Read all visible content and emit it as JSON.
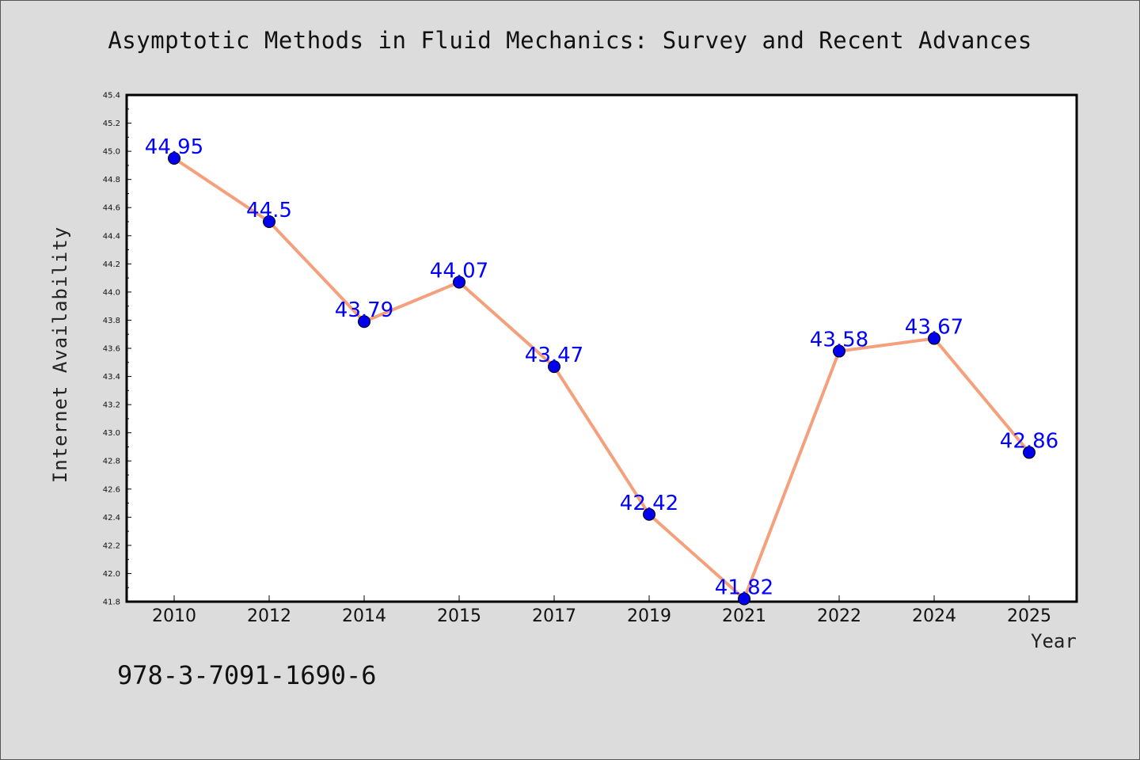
{
  "page": {
    "footer_code": "978-3-7091-1690-6"
  },
  "chart_data": {
    "type": "line",
    "title": "Asymptotic Methods in Fluid Mechanics: Survey and Recent Advances",
    "xlabel": "Year",
    "ylabel": "Internet Availability",
    "categories": [
      "2010",
      "2012",
      "2014",
      "2015",
      "2017",
      "2019",
      "2021",
      "2022",
      "2024",
      "2025"
    ],
    "series": [
      {
        "values": [
          44.95,
          44.5,
          43.79,
          44.07,
          43.47,
          42.42,
          41.82,
          43.58,
          43.67,
          42.86
        ],
        "data_labels": [
          "44.95",
          "44.5",
          "43.79",
          "44.07",
          "43.47",
          "42.42",
          "41.82",
          "43.58",
          "43.67",
          "42.86"
        ],
        "line_color": "#f4a07c",
        "marker_color": "#0000ee"
      }
    ],
    "ylim": [
      41.8,
      45.4
    ],
    "yticks": [
      "41.8",
      "42.0",
      "42.2",
      "42.4",
      "42.6",
      "42.8",
      "43.0",
      "43.2",
      "43.4",
      "43.6",
      "43.8",
      "44.0",
      "44.2",
      "44.4",
      "44.6",
      "44.8",
      "45.0",
      "45.2",
      "45.4"
    ],
    "grid": false,
    "legend": "none",
    "data_label_color": "#0000ff"
  }
}
